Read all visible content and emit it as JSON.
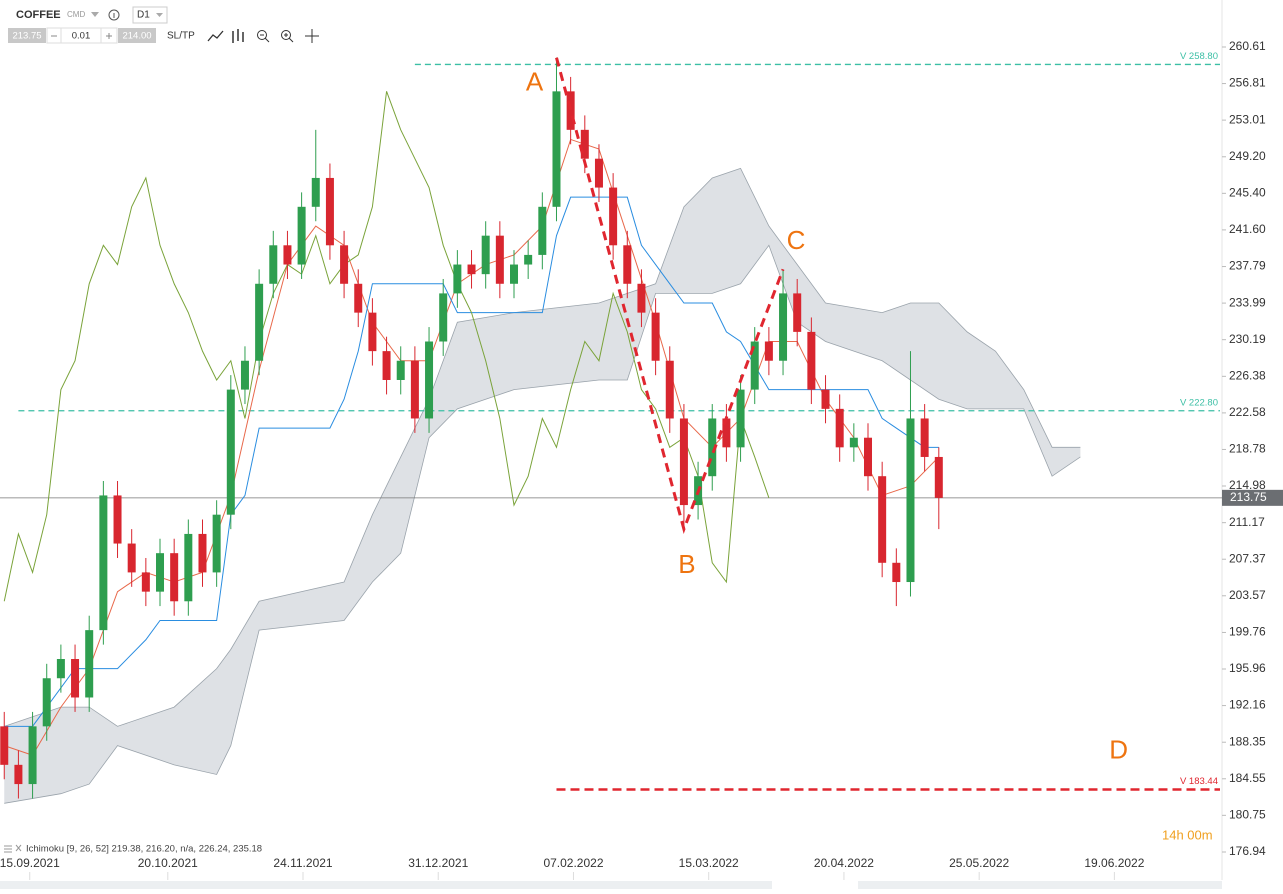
{
  "toolbar": {
    "symbol": "COFFEE",
    "market": "CMD",
    "interval": "D1",
    "bid": "213.75",
    "step": "0.01",
    "ask": "214.00",
    "sltp": "SL/TP"
  },
  "indicator_label": "Ichimoku [9, 26, 52] 219.38, 216.20, n/a, 226.24, 235.18",
  "timer": "14h 00m",
  "chart_data": {
    "type": "candlestick",
    "xlim": [
      -0.3,
      86
    ],
    "ylim": [
      176.94,
      260.61
    ],
    "yticks": [
      260.61,
      256.81,
      253.01,
      {
        "value": 249.2,
        "label": "249.20"
      },
      {
        "value": 245.4,
        "label": "245.40"
      },
      {
        "value": 241.6,
        "label": "241.60"
      },
      237.79,
      233.99,
      230.19,
      226.38,
      222.58,
      218.78,
      214.98,
      211.17,
      207.37,
      203.57,
      199.76,
      195.96,
      192.16,
      188.35,
      184.55,
      180.75,
      176.94
    ],
    "xticks": [
      {
        "value": 1.8,
        "label": "15.09.2021"
      },
      {
        "value": 11.55,
        "label": "20.10.2021"
      },
      {
        "value": 21.1,
        "label": "24.11.2021"
      },
      {
        "value": 30.65,
        "label": "31.12.2021"
      },
      {
        "value": 40.2,
        "label": "07.02.2022"
      },
      {
        "value": 49.75,
        "label": "15.03.2022"
      },
      {
        "value": 59.3,
        "label": "20.04.2022"
      },
      {
        "value": 68.85,
        "label": "25.05.2022"
      },
      {
        "value": 78.4,
        "label": "19.06.2022"
      }
    ],
    "grid": false,
    "up_color": "#2e9e4f",
    "down_color": "#d8262f",
    "open": [
      190,
      186,
      184,
      190,
      195,
      197,
      193,
      200,
      214,
      209,
      206,
      204,
      208,
      203,
      210,
      206,
      212,
      225,
      228,
      236,
      240,
      238,
      244,
      247,
      240,
      236,
      233,
      229,
      226,
      228,
      222,
      230,
      235,
      238,
      237,
      241,
      236,
      238,
      239,
      244,
      256,
      252,
      249,
      246,
      240,
      236,
      233,
      228,
      222,
      213,
      216,
      222,
      219,
      225,
      230,
      228,
      235,
      231,
      225,
      223,
      219,
      220,
      216,
      207,
      205,
      222,
      218
    ],
    "high": [
      191.5,
      187.5,
      191.5,
      196.5,
      198.5,
      198.5,
      201.5,
      215.5,
      215.5,
      210.5,
      207.5,
      209.5,
      209.5,
      211.5,
      211.5,
      213.5,
      226.5,
      229.5,
      237.5,
      241.5,
      241.5,
      245.5,
      252,
      248.5,
      241.5,
      237.5,
      234.5,
      230.5,
      229.5,
      229.5,
      231.5,
      236.5,
      239.5,
      239.5,
      242.5,
      242.5,
      239.5,
      240.5,
      245.5,
      259.5,
      257.5,
      253.5,
      250.5,
      247.5,
      241.5,
      237.5,
      234.5,
      229.5,
      223.5,
      217.5,
      223.5,
      223.5,
      226.5,
      231.5,
      231.5,
      237.5,
      236.5,
      232.5,
      226.5,
      224.5,
      221.5,
      221.5,
      217.5,
      208.5,
      229,
      223.5,
      219
    ],
    "low": [
      184.5,
      182.5,
      182.5,
      188.5,
      193.5,
      191.5,
      191.5,
      198.5,
      207.5,
      204.5,
      202.5,
      202.5,
      201.5,
      201.5,
      204.5,
      204.5,
      210.5,
      223.5,
      226.5,
      234.5,
      236.5,
      236.5,
      242.5,
      238.5,
      234.5,
      231.5,
      227.5,
      224.5,
      224.5,
      220.5,
      220.5,
      228.5,
      233.5,
      235.5,
      235.5,
      234.5,
      234.5,
      236.5,
      237.5,
      242.5,
      250.5,
      247.5,
      244.5,
      238.5,
      234.5,
      231.5,
      226.5,
      220.5,
      210.5,
      211.5,
      214.5,
      217.5,
      217.5,
      223.5,
      226.5,
      226.5,
      229.5,
      223.5,
      221.5,
      217.5,
      217.5,
      214.5,
      205.5,
      202.5,
      203.5,
      216.5,
      210.5
    ],
    "close": [
      186,
      184,
      190,
      195,
      197,
      193,
      200,
      214,
      209,
      206,
      204,
      208,
      203,
      210,
      206,
      212,
      225,
      228,
      236,
      240,
      238,
      244,
      247,
      240,
      236,
      233,
      229,
      226,
      228,
      222,
      230,
      235,
      238,
      237,
      241,
      236,
      238,
      239,
      244,
      256,
      252,
      249,
      246,
      240,
      236,
      233,
      228,
      222,
      213,
      216,
      222,
      219,
      225,
      230,
      228,
      235,
      231,
      225,
      223,
      219,
      220,
      216,
      207,
      205,
      222,
      218,
      213.75
    ],
    "last_price": 213.75,
    "lines": [
      {
        "color": "#e8684a",
        "x": [
          0,
          2,
          4,
          6,
          8,
          10,
          12,
          14,
          16,
          18,
          20,
          22,
          24,
          26,
          28,
          30,
          32,
          34,
          36,
          38,
          40,
          42,
          44,
          46,
          48,
          50,
          52,
          54,
          56,
          58,
          60,
          62,
          64,
          66
        ],
        "values": [
          188,
          187,
          192,
          196,
          204,
          206,
          205,
          206,
          214,
          227,
          238,
          242,
          240,
          232,
          228,
          228,
          236,
          238,
          239,
          242,
          251,
          250,
          241,
          232,
          222,
          219,
          222,
          230,
          230,
          224,
          220,
          214,
          215,
          218
        ]
      },
      {
        "color": "#2a8de0",
        "x": [
          0,
          2,
          5,
          8,
          10,
          11,
          15,
          16,
          17,
          18,
          23,
          24,
          25,
          26,
          31,
          32,
          38,
          39,
          40,
          44,
          45,
          47,
          48,
          50,
          51,
          52,
          54,
          57,
          58,
          61,
          62,
          65,
          66
        ],
        "values": [
          190,
          190,
          196,
          196,
          199,
          201,
          201,
          212,
          214,
          221,
          221,
          224,
          229,
          236,
          236,
          233,
          233,
          241,
          245,
          245,
          240,
          236,
          234,
          234,
          231,
          230,
          225,
          225,
          225,
          225,
          222,
          219,
          219
        ]
      },
      {
        "color": "#7aa33a",
        "values": [
          203,
          210,
          206,
          212,
          225,
          228,
          236,
          240,
          238,
          244,
          247,
          240,
          236,
          233,
          229,
          226,
          228,
          222,
          230,
          235,
          238,
          237,
          241,
          236,
          238,
          239,
          244,
          256,
          252,
          249,
          246,
          240,
          236,
          233,
          228,
          222,
          213,
          216,
          222,
          219,
          225,
          230,
          228,
          235,
          231,
          225,
          223,
          219,
          220,
          216,
          207,
          205,
          222,
          218,
          213.75
        ]
      }
    ],
    "cloud": {
      "color": "#c3c9cf",
      "x": [
        0,
        4,
        6,
        8,
        12,
        15,
        16,
        18,
        24,
        26,
        28,
        30,
        32,
        36,
        42,
        44,
        46,
        48,
        50,
        52,
        54,
        56,
        58,
        62,
        64,
        66,
        68,
        70,
        72,
        74,
        76
      ],
      "span_a": [
        190,
        192,
        192,
        190,
        192,
        196,
        198,
        203,
        205,
        212,
        218,
        224,
        232,
        233,
        234,
        235,
        236,
        244,
        247,
        248,
        242,
        238,
        234,
        233,
        234,
        234,
        231,
        229,
        225,
        219,
        219
      ],
      "span_b": [
        182,
        183,
        184,
        188,
        186,
        185,
        188,
        200,
        201,
        205,
        208,
        220,
        223,
        225,
        226,
        226,
        235,
        235,
        235,
        236,
        240,
        232,
        230,
        228,
        226,
        224,
        223,
        223,
        223,
        216,
        218
      ]
    },
    "levels": [
      {
        "value": 258.8,
        "label": "V 258.80",
        "color": "#3cbfa5",
        "start_x": 29
      },
      {
        "value": 222.8,
        "label": "V 222.80",
        "color": "#3cbfa5",
        "start_x": 1
      },
      {
        "value": 183.44,
        "label": "V 183.44",
        "color": "#e0262f",
        "start_x": 39
      }
    ],
    "pattern": {
      "color": "#e0262f",
      "label_color": "#ee7410",
      "points": [
        {
          "label": "A",
          "x": 39,
          "y": 259.5
        },
        {
          "label": "B",
          "x": 48,
          "y": 210.5
        },
        {
          "label": "C",
          "x": 55,
          "y": 237.5
        }
      ],
      "target": {
        "label": "D",
        "x": 78.7,
        "y": 183.44
      }
    }
  }
}
